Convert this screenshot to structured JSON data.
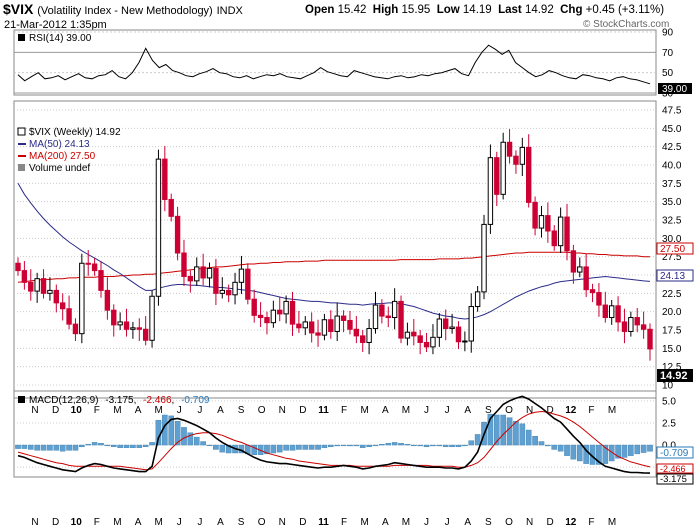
{
  "header": {
    "symbol": "$VIX",
    "name": "(Volatility Index - New Methodology)",
    "exchange": "INDX",
    "date": "21-Mar-2012 1:35pm",
    "watermark": "© StockCharts.com",
    "quote_labels": {
      "open": "Open",
      "high": "High",
      "low": "Low",
      "last": "Last",
      "chg": "Chg"
    },
    "quote_values": {
      "open": "15.42",
      "high": "15.95",
      "low": "14.19",
      "last": "14.92",
      "chg": "+0.45 (+3.11%)"
    }
  },
  "colors": {
    "up": "#000000",
    "down": "#cc0033",
    "ma50": "#2b2b8a",
    "ma200": "#cc0000",
    "volume": "#5fa0d0",
    "rsi": "#000000",
    "grid": "#cccccc",
    "last_box": "#000000"
  },
  "rsi_panel": {
    "label": "RSI(14) 39.00",
    "ticks": [
      "90",
      "70",
      "50",
      "30"
    ],
    "last_value": "39.00",
    "overbought": 70,
    "oversold": 30,
    "values": [
      48,
      42,
      46,
      50,
      44,
      45,
      47,
      43,
      46,
      49,
      45,
      44,
      47,
      48,
      52,
      46,
      44,
      50,
      60,
      74,
      62,
      55,
      58,
      52,
      50,
      47,
      46,
      49,
      51,
      54,
      50,
      49,
      46,
      45,
      47,
      44,
      46,
      48,
      47,
      49,
      46,
      45,
      44,
      47,
      50,
      55,
      51,
      49,
      47,
      46,
      52,
      50,
      48,
      46,
      45,
      44,
      46,
      47,
      45,
      46,
      48,
      47,
      49,
      50,
      52,
      54,
      49,
      47,
      60,
      70,
      77,
      73,
      68,
      72,
      60,
      55,
      50,
      46,
      48,
      52,
      50,
      47,
      45,
      44,
      48,
      47,
      45,
      44,
      42,
      45,
      46,
      44,
      43,
      41,
      39
    ]
  },
  "price_panel": {
    "legend": [
      {
        "text": "$VIX (Weekly) 14.92",
        "kind": "candle"
      },
      {
        "text": "MA(50) 24.13",
        "kind": "ma50"
      },
      {
        "text": "MA(200) 27.50",
        "kind": "ma200"
      },
      {
        "text": "Volume undef",
        "kind": "volume"
      }
    ],
    "ticks": [
      "47.5",
      "45.0",
      "42.5",
      "40.0",
      "37.5",
      "35.0",
      "32.5",
      "30.0",
      "27.5",
      "25.0",
      "22.5",
      "20.0",
      "17.5",
      "15.0",
      "12.5",
      "10"
    ],
    "tag_labels": {
      "ma200": "27.50",
      "ma50": "24.13",
      "last": "14.92"
    },
    "closes": [
      25.6,
      24.0,
      22.8,
      24.5,
      22.5,
      22.9,
      21.2,
      20.4,
      18.3,
      17.0,
      26.6,
      26.5,
      25.6,
      22.9,
      20.2,
      18.2,
      18.6,
      17.6,
      17.8,
      17.6,
      16.1,
      22.1,
      40.8,
      35.3,
      33.0,
      28.0,
      24.8,
      24.2,
      26.1,
      24.6,
      25.9,
      22.5,
      22.9,
      22.3,
      24.0,
      25.8,
      21.7,
      19.5,
      19.2,
      18.5,
      20.2,
      19.7,
      21.4,
      18.3,
      17.8,
      18.6,
      17.1,
      16.8,
      18.9,
      17.3,
      19.4,
      18.8,
      17.6,
      16.7,
      15.8,
      17.7,
      20.9,
      19.4,
      19.2,
      21.4,
      16.4,
      17.2,
      16.7,
      15.8,
      15.2,
      16.5,
      19.0,
      17.7,
      17.9,
      15.9,
      16.0,
      20.7,
      22.7,
      31.9,
      41.0,
      36.0,
      43.1,
      41.2,
      40.1,
      42.4,
      34.9,
      31.4,
      33.1,
      31.0,
      29.0,
      32.9,
      28.3,
      25.4,
      26.1,
      23.0,
      22.6,
      20.9,
      19.2,
      20.8,
      18.6,
      17.3,
      19.2,
      18.2,
      17.6,
      14.92
    ],
    "ma50": [
      37.5,
      36.0,
      34.8,
      33.7,
      32.7,
      31.8,
      31.0,
      30.2,
      29.5,
      28.9,
      28.3,
      27.8,
      27.3,
      26.8,
      26.3,
      25.7,
      25.2,
      24.6,
      24.0,
      23.4,
      22.9,
      22.9,
      23.2,
      23.4,
      23.6,
      23.7,
      23.7,
      23.6,
      23.6,
      23.5,
      23.4,
      23.3,
      23.3,
      23.2,
      23.1,
      23.0,
      22.9,
      22.8,
      22.6,
      22.4,
      22.2,
      22.0,
      21.8,
      21.7,
      21.6,
      21.5,
      21.4,
      21.4,
      21.3,
      21.2,
      21.2,
      21.1,
      21.0,
      21.0,
      20.9,
      21.0,
      21.1,
      21.1,
      21.2,
      21.2,
      21.1,
      20.9,
      20.7,
      20.4,
      20.1,
      19.8,
      19.6,
      19.4,
      19.3,
      19.1,
      19.0,
      19.1,
      19.3,
      19.6,
      20.0,
      20.5,
      21.0,
      21.5,
      22.0,
      22.4,
      22.8,
      23.1,
      23.4,
      23.6,
      23.9,
      24.1,
      24.2,
      24.3,
      24.4,
      24.5,
      24.6,
      24.7,
      24.8,
      24.7,
      24.6,
      24.5,
      24.4,
      24.3,
      24.2,
      24.13
    ],
    "ma200": [
      24.0,
      24.1,
      24.2,
      24.3,
      24.4,
      24.4,
      24.5,
      24.5,
      24.6,
      24.6,
      24.7,
      24.7,
      24.7,
      24.8,
      24.8,
      24.8,
      24.9,
      24.9,
      25.0,
      25.0,
      25.1,
      25.1,
      25.2,
      25.3,
      25.4,
      25.5,
      25.6,
      25.7,
      25.8,
      25.9,
      26.0,
      26.1,
      26.1,
      26.2,
      26.3,
      26.4,
      26.5,
      26.5,
      26.6,
      26.6,
      26.7,
      26.7,
      26.8,
      26.8,
      26.8,
      26.9,
      26.9,
      26.9,
      27.0,
      27.0,
      27.0,
      27.0,
      27.0,
      27.0,
      27.0,
      27.0,
      27.0,
      27.0,
      27.0,
      27.0,
      27.1,
      27.1,
      27.1,
      27.1,
      27.1,
      27.1,
      27.2,
      27.2,
      27.2,
      27.2,
      27.3,
      27.3,
      27.4,
      27.5,
      27.6,
      27.7,
      27.8,
      27.9,
      28.0,
      28.0,
      28.1,
      28.1,
      28.1,
      28.1,
      28.1,
      28.1,
      28.1,
      28.0,
      28.0,
      27.9,
      27.9,
      27.8,
      27.8,
      27.7,
      27.7,
      27.6,
      27.6,
      27.6,
      27.5,
      27.5
    ]
  },
  "macd_panel": {
    "label_prefix": "MACD(12,26,9)",
    "values": {
      "macd": "-3.175",
      "signal": "-2.466",
      "histogram": "-0.709"
    },
    "ticks": [
      "5.0",
      "2.5",
      "0.0",
      "-2.5"
    ],
    "tag_labels": {
      "histogram": "-0.709",
      "signal": "-2.466",
      "macd": "-3.175"
    },
    "macd": [
      -1.2,
      -1.4,
      -1.7,
      -2.0,
      -2.2,
      -2.4,
      -2.6,
      -2.8,
      -2.9,
      -3.0,
      -2.6,
      -2.3,
      -2.1,
      -2.2,
      -2.4,
      -2.6,
      -2.7,
      -2.8,
      -2.9,
      -3.0,
      -3.0,
      -2.4,
      0.8,
      2.2,
      2.9,
      3.0,
      2.8,
      2.5,
      2.2,
      1.8,
      1.4,
      0.8,
      0.3,
      -0.1,
      -0.4,
      -0.6,
      -1.0,
      -1.4,
      -1.7,
      -1.9,
      -2.0,
      -2.1,
      -2.1,
      -2.2,
      -2.3,
      -2.4,
      -2.5,
      -2.6,
      -2.5,
      -2.5,
      -2.4,
      -2.3,
      -2.4,
      -2.5,
      -2.7,
      -2.6,
      -2.4,
      -2.3,
      -2.2,
      -2.0,
      -2.1,
      -2.2,
      -2.3,
      -2.4,
      -2.5,
      -2.5,
      -2.5,
      -2.6,
      -2.6,
      -2.7,
      -2.5,
      -1.8,
      -0.8,
      1.2,
      3.0,
      3.8,
      4.6,
      5.0,
      5.3,
      5.5,
      5.2,
      4.7,
      4.2,
      3.6,
      3.0,
      2.6,
      1.8,
      1.0,
      0.3,
      -0.6,
      -1.3,
      -1.9,
      -2.4,
      -2.6,
      -2.8,
      -3.0,
      -3.1,
      -3.1,
      -3.15,
      -3.175
    ],
    "signal": [
      -0.8,
      -1.0,
      -1.2,
      -1.4,
      -1.6,
      -1.8,
      -2.0,
      -2.1,
      -2.3,
      -2.4,
      -2.4,
      -2.4,
      -2.4,
      -2.4,
      -2.4,
      -2.4,
      -2.4,
      -2.5,
      -2.6,
      -2.7,
      -2.8,
      -2.7,
      -2.0,
      -1.2,
      -0.4,
      0.3,
      0.8,
      1.1,
      1.3,
      1.4,
      1.4,
      1.3,
      1.1,
      0.8,
      0.5,
      0.3,
      0.0,
      -0.3,
      -0.6,
      -0.9,
      -1.1,
      -1.3,
      -1.5,
      -1.6,
      -1.8,
      -1.9,
      -2.0,
      -2.1,
      -2.2,
      -2.3,
      -2.3,
      -2.3,
      -2.3,
      -2.4,
      -2.4,
      -2.4,
      -2.4,
      -2.4,
      -2.4,
      -2.3,
      -2.3,
      -2.3,
      -2.3,
      -2.3,
      -2.3,
      -2.4,
      -2.4,
      -2.4,
      -2.4,
      -2.5,
      -2.5,
      -2.3,
      -2.0,
      -1.4,
      -0.5,
      0.4,
      1.2,
      1.9,
      2.6,
      3.1,
      3.5,
      3.7,
      3.8,
      3.7,
      3.5,
      3.3,
      3.0,
      2.6,
      2.1,
      1.5,
      0.9,
      0.3,
      -0.3,
      -0.8,
      -1.3,
      -1.6,
      -1.9,
      -2.1,
      -2.3,
      -2.466
    ]
  },
  "x_axis": {
    "labels": [
      {
        "t": "N",
        "b": false
      },
      {
        "t": "D",
        "b": false
      },
      {
        "t": "10",
        "b": true
      },
      {
        "t": "F",
        "b": false
      },
      {
        "t": "M",
        "b": false
      },
      {
        "t": "A",
        "b": false
      },
      {
        "t": "M",
        "b": false
      },
      {
        "t": "J",
        "b": false
      },
      {
        "t": "J",
        "b": false
      },
      {
        "t": "A",
        "b": false
      },
      {
        "t": "S",
        "b": false
      },
      {
        "t": "O",
        "b": false
      },
      {
        "t": "N",
        "b": false
      },
      {
        "t": "D",
        "b": false
      },
      {
        "t": "11",
        "b": true
      },
      {
        "t": "F",
        "b": false
      },
      {
        "t": "M",
        "b": false
      },
      {
        "t": "A",
        "b": false
      },
      {
        "t": "M",
        "b": false
      },
      {
        "t": "J",
        "b": false
      },
      {
        "t": "J",
        "b": false
      },
      {
        "t": "A",
        "b": false
      },
      {
        "t": "S",
        "b": false
      },
      {
        "t": "O",
        "b": false
      },
      {
        "t": "N",
        "b": false
      },
      {
        "t": "D",
        "b": false
      },
      {
        "t": "12",
        "b": true
      },
      {
        "t": "F",
        "b": false
      },
      {
        "t": "M",
        "b": false
      }
    ]
  },
  "chart_data": {
    "type": "line",
    "title": "$VIX (Volatility Index - New Methodology) INDX",
    "subtitle": "21-Mar-2012 1:35pm",
    "x_categories": [
      "N",
      "D",
      "10",
      "F",
      "M",
      "A",
      "M",
      "J",
      "J",
      "A",
      "S",
      "O",
      "N",
      "D",
      "11",
      "F",
      "M",
      "A",
      "M",
      "J",
      "J",
      "A",
      "S",
      "O",
      "N",
      "D",
      "12",
      "F",
      "M"
    ],
    "series": [
      {
        "name": "$VIX (Weekly)",
        "last": 14.92
      },
      {
        "name": "MA(50)",
        "last": 24.13
      },
      {
        "name": "MA(200)",
        "last": 27.5
      },
      {
        "name": "RSI(14)",
        "last": 39.0
      },
      {
        "name": "MACD(12,26,9)",
        "last": -3.175
      },
      {
        "name": "Signal",
        "last": -2.466
      },
      {
        "name": "Histogram",
        "last": -0.709
      }
    ],
    "price_ylim": [
      10,
      47.5
    ],
    "rsi_ylim": [
      30,
      90
    ],
    "macd_ylim": [
      -3.5,
      6.0
    ],
    "legend": "top-left",
    "grid": true
  }
}
